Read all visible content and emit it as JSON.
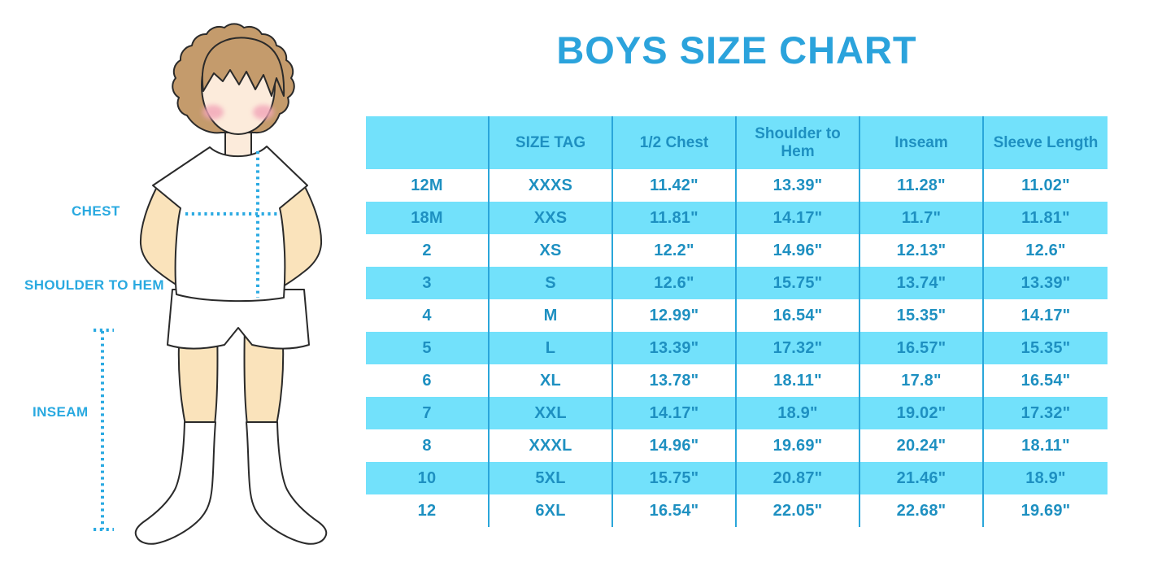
{
  "title": "BOYS SIZE CHART",
  "figure": {
    "labels": {
      "chest": "CHEST",
      "shoulder_to_hem": "SHOULDER TO HEM",
      "inseam": "INSEAM"
    }
  },
  "colors": {
    "title_blue": "#2BA3DC",
    "label_blue": "#29A9E0",
    "stripe_blue": "#72E1FB",
    "grid_line_blue": "#2AA6DA",
    "table_text_blue": "#1E90C1",
    "dotted_line_blue": "#2BAAE2",
    "hair_brown": "#C49B6C",
    "skin_face": "#FCEBDB",
    "skin_limbs": "#FAE3BB",
    "blush_pink": "#F2A5B8"
  },
  "chart_data": {
    "type": "table",
    "title": "BOYS SIZE CHART",
    "units": "inches",
    "columns": [
      "",
      "SIZE TAG",
      "1/2 Chest",
      "Shoulder to Hem",
      "Inseam",
      "Sleeve Length"
    ],
    "rows": [
      [
        "12M",
        "XXXS",
        "11.42\"",
        "13.39\"",
        "11.28\"",
        "11.02\""
      ],
      [
        "18M",
        "XXS",
        "11.81\"",
        "14.17\"",
        "11.7\"",
        "11.81\""
      ],
      [
        "2",
        "XS",
        "12.2\"",
        "14.96\"",
        "12.13\"",
        "12.6\""
      ],
      [
        "3",
        "S",
        "12.6\"",
        "15.75\"",
        "13.74\"",
        "13.39\""
      ],
      [
        "4",
        "M",
        "12.99\"",
        "16.54\"",
        "15.35\"",
        "14.17\""
      ],
      [
        "5",
        "L",
        "13.39\"",
        "17.32\"",
        "16.57\"",
        "15.35\""
      ],
      [
        "6",
        "XL",
        "13.78\"",
        "18.11\"",
        "17.8\"",
        "16.54\""
      ],
      [
        "7",
        "XXL",
        "14.17\"",
        "18.9\"",
        "19.02\"",
        "17.32\""
      ],
      [
        "8",
        "XXXL",
        "14.96\"",
        "19.69\"",
        "20.24\"",
        "18.11\""
      ],
      [
        "10",
        "5XL",
        "15.75\"",
        "20.87\"",
        "21.46\"",
        "18.9\""
      ],
      [
        "12",
        "6XL",
        "16.54\"",
        "22.05\"",
        "22.68\"",
        "19.69\""
      ]
    ],
    "layout": {
      "header_fill": "stripe_blue",
      "row_striping": "alternating starting white after header",
      "column_separators": true,
      "row_separators": false
    }
  }
}
